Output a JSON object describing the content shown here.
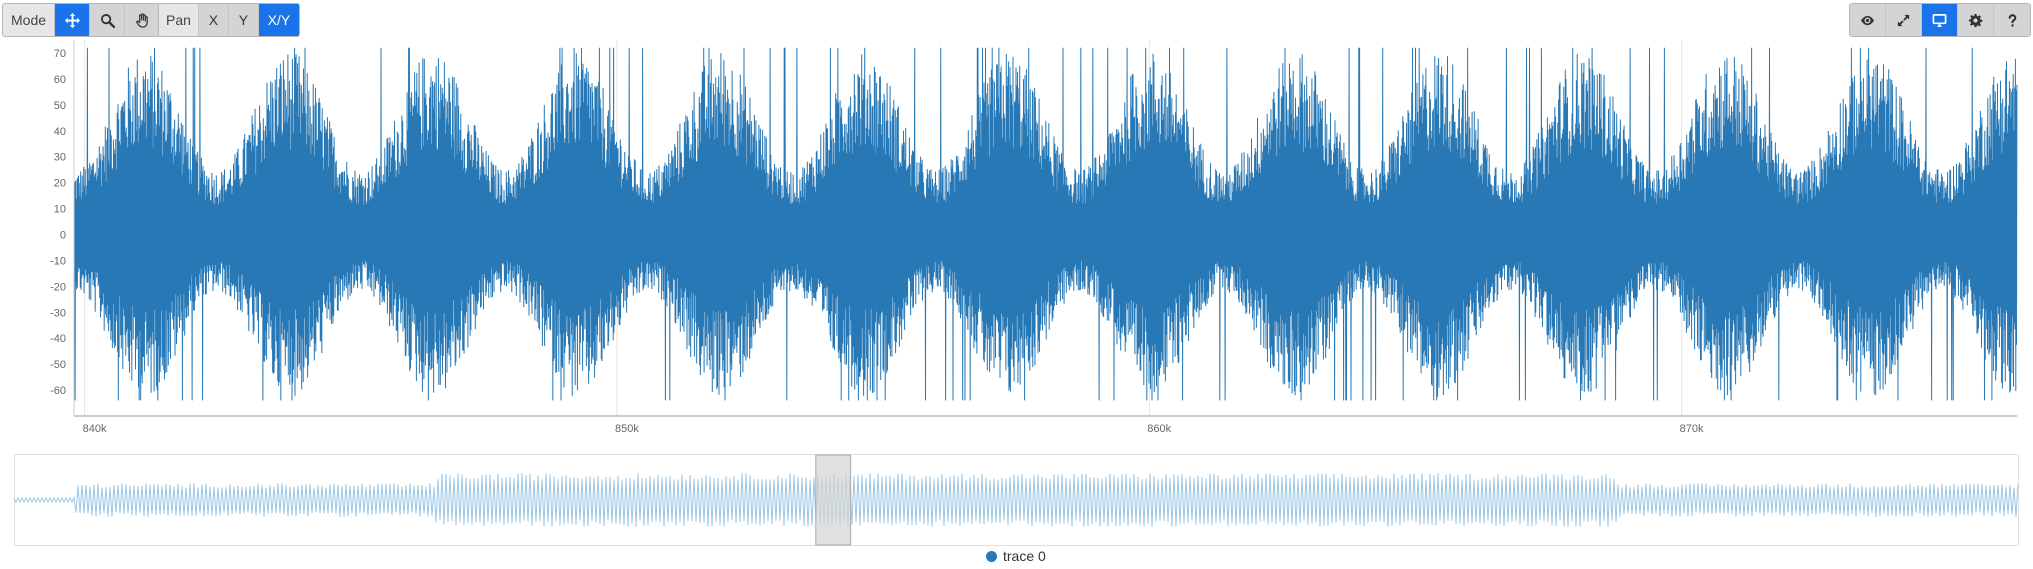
{
  "toolbar": {
    "mode_label": "Mode",
    "mode_buttons": [
      {
        "name": "move",
        "icon": "move-arrows-icon",
        "active": true
      },
      {
        "name": "zoom",
        "icon": "search-icon",
        "active": false
      },
      {
        "name": "pan",
        "icon": "hand-icon",
        "active": false
      }
    ],
    "pan_label": "Pan",
    "pan_axes": [
      {
        "label": "X",
        "active": false
      },
      {
        "label": "Y",
        "active": false
      },
      {
        "label": "X/Y",
        "active": true
      }
    ],
    "view_buttons": [
      {
        "name": "visibility",
        "icon": "eye-icon",
        "active": false
      },
      {
        "name": "fullscreen",
        "icon": "expand-icon",
        "active": false
      },
      {
        "name": "display",
        "icon": "monitor-icon",
        "active": true
      },
      {
        "name": "settings",
        "icon": "gear-icon",
        "active": false
      },
      {
        "name": "help",
        "icon": "question-icon",
        "active": false
      }
    ]
  },
  "colors": {
    "accent": "#1a73e8",
    "trace": "#2878b5",
    "overview_trace": "#9ec8e6",
    "selection": "#d3d3d3",
    "grid": "#e6e6e6"
  },
  "chart_data": {
    "type": "line",
    "series": [
      {
        "name": "trace 0"
      }
    ],
    "xlim": [
      839800,
      876300
    ],
    "ylim": [
      -70,
      75
    ],
    "x_ticks": [
      840000,
      850000,
      860000,
      870000
    ],
    "x_tick_labels": [
      "840k",
      "850k",
      "860k",
      "870k"
    ],
    "y_ticks": [
      70,
      60,
      50,
      40,
      30,
      20,
      10,
      0,
      -10,
      -20,
      -30,
      -40,
      -50,
      -60
    ],
    "y_tick_labels": [
      "70",
      "60",
      "50",
      "40",
      "30",
      "20",
      "10",
      "0",
      "-10",
      "-20",
      "-30",
      "-40",
      "-50",
      "-60"
    ],
    "burst_period": 2700,
    "burst_peak": 72,
    "burst_trough": -64,
    "overview": {
      "xlim": [
        0,
        2100000
      ],
      "ylim": [
        -75,
        75
      ],
      "selection": [
        839800,
        876300
      ]
    },
    "legend": {
      "position": "bottom-center",
      "entries": [
        "trace 0"
      ]
    }
  }
}
